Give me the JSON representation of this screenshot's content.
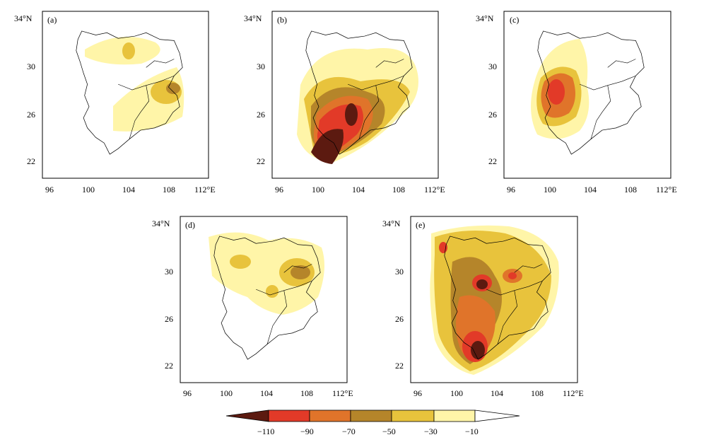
{
  "panels": [
    {
      "id": "a",
      "label": "(a)"
    },
    {
      "id": "b",
      "label": "(b)"
    },
    {
      "id": "c",
      "label": "(c)"
    },
    {
      "id": "d",
      "label": "(d)"
    },
    {
      "id": "e",
      "label": "(e)"
    }
  ],
  "axes": {
    "x_ticks": [
      "96",
      "100",
      "104",
      "108"
    ],
    "x_unit_tick": "112°E",
    "y_ticks": [
      "30",
      "26",
      "22"
    ],
    "y_unit_tick": "34°N"
  },
  "colorbar": {
    "labels": [
      "−110",
      "−90",
      "−70",
      "−50",
      "−30",
      "−10"
    ],
    "colors": [
      "#5c1a10",
      "#e23a28",
      "#e0742a",
      "#b5852a",
      "#e8c33c",
      "#fff5a8"
    ]
  }
}
